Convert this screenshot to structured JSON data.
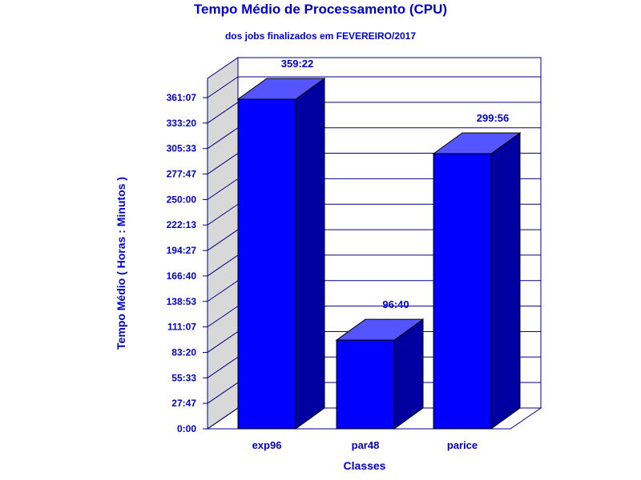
{
  "chart_data": {
    "type": "bar",
    "title": "Tempo Médio de Processamento (CPU)",
    "subtitle": "dos jobs finalizados em FEVEREIRO/2017",
    "xlabel": "Classes",
    "ylabel": "Tempo Médio ( Horas : Minutos )",
    "categories": [
      "exp96",
      "par48",
      "parice"
    ],
    "values": [
      359.367,
      96.667,
      299.933
    ],
    "value_labels": [
      "359:22",
      "96:40",
      "299:56"
    ],
    "y_ticks": [
      "0:00",
      "27:47",
      "55:33",
      "83:20",
      "111:07",
      "138:53",
      "166:40",
      "194:27",
      "222:13",
      "250:00",
      "277:47",
      "305:33",
      "333:20",
      "361:07"
    ],
    "ylim": [
      0,
      361.111
    ],
    "grid": true,
    "legend": "none",
    "colors": {
      "bar_front": "#0000ff",
      "bar_top": "#5555ff",
      "bar_side": "#0000a0",
      "text": "#0000cc",
      "grid": "#000080",
      "wall": "#d8d8d8"
    }
  }
}
